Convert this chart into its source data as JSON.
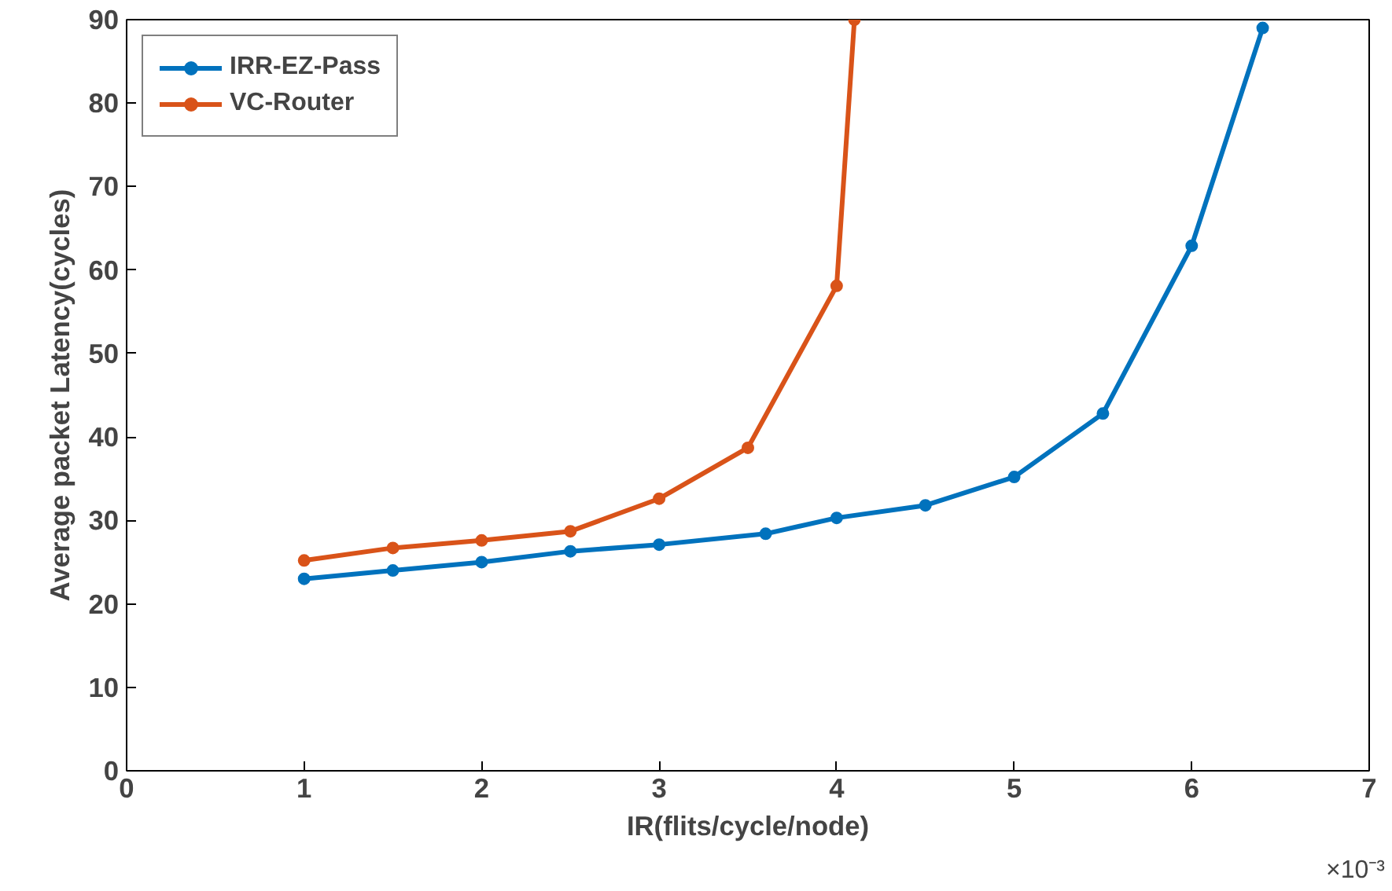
{
  "chart_data": {
    "type": "line",
    "xlabel": "IR(flits/cycle/node)",
    "ylabel": "Average packet Latency(cycles)",
    "xlim": [
      0,
      7
    ],
    "xticks": [
      0,
      1,
      2,
      3,
      4,
      5,
      6,
      7
    ],
    "ylim": [
      0,
      90
    ],
    "yticks": [
      0,
      10,
      20,
      30,
      40,
      50,
      60,
      70,
      80,
      90
    ],
    "series": [
      {
        "name": "IRR-EZ-Pass",
        "color": "#0072bd",
        "x": [
          1,
          1.5,
          2,
          2.5,
          3,
          3.6,
          4,
          4.5,
          5,
          5.5,
          6,
          6.4
        ],
        "values": [
          23,
          24,
          25,
          26.3,
          27.1,
          28.4,
          30.3,
          31.8,
          35.2,
          42.8,
          62.9,
          89
        ]
      },
      {
        "name": "VC-Router",
        "color": "#d95319",
        "x": [
          1,
          1.5,
          2,
          2.5,
          3,
          3.5,
          4,
          4.1
        ],
        "values": [
          25.2,
          26.7,
          27.6,
          28.7,
          32.6,
          38.7,
          58.1,
          90
        ]
      }
    ],
    "annotations": [
      "×10⁻³"
    ],
    "legend": "top left",
    "grid": false,
    "marker": "circle",
    "line_style": "solid"
  }
}
